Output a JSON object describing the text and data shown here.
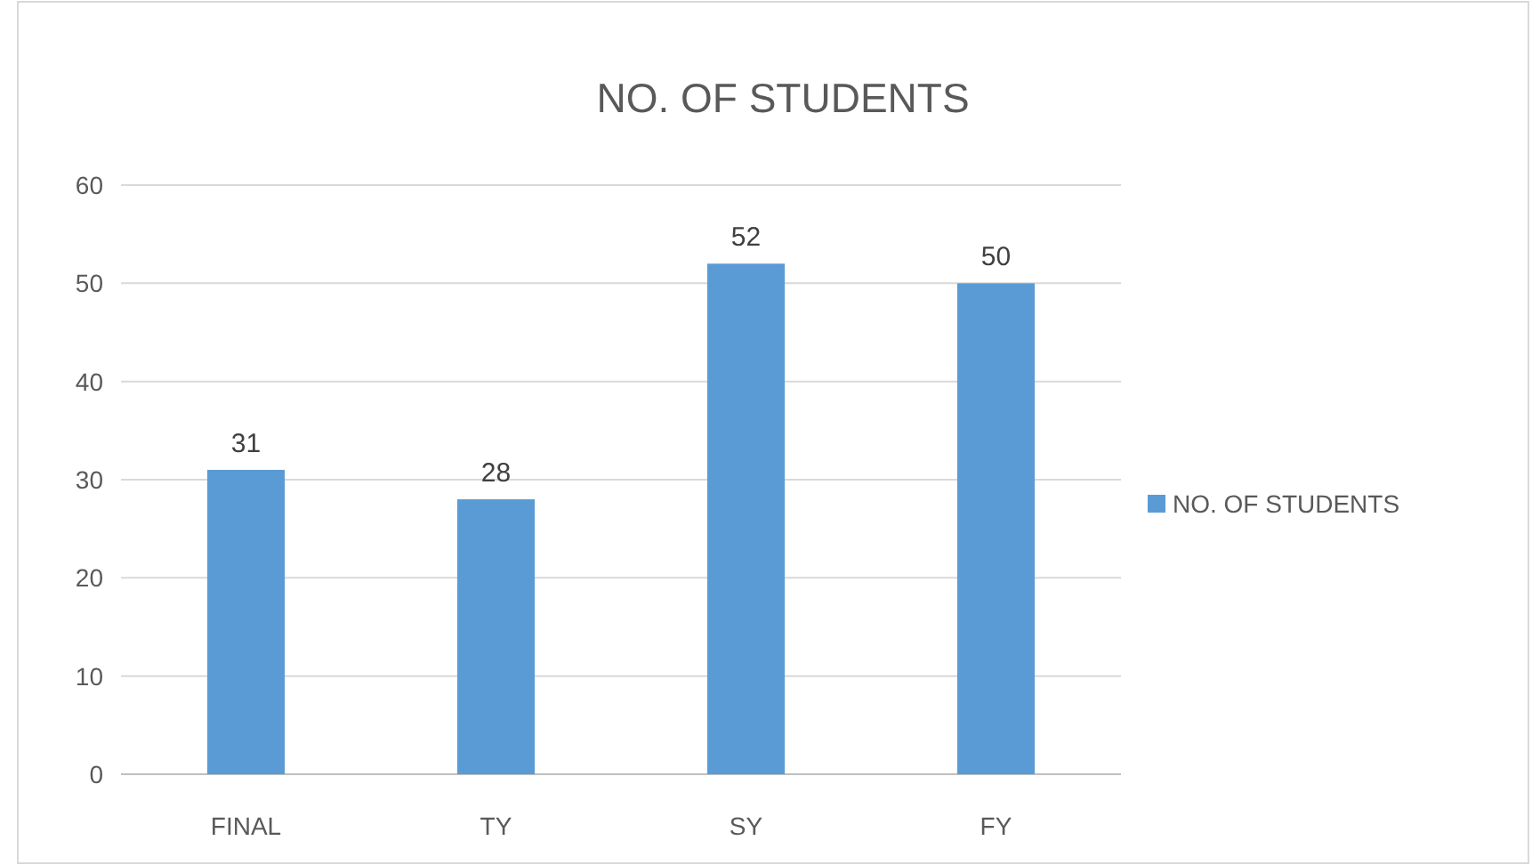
{
  "chart_data": {
    "type": "bar",
    "title": "NO. OF STUDENTS",
    "categories": [
      "FINAL",
      "TY",
      "SY",
      "FY"
    ],
    "series": [
      {
        "name": "NO. OF STUDENTS",
        "color": "#5b9bd5",
        "values": [
          31,
          28,
          52,
          50
        ]
      }
    ],
    "ylim": [
      0,
      60
    ],
    "yticks": [
      0,
      10,
      20,
      30,
      40,
      50,
      60
    ],
    "grid": "y",
    "legend": "right",
    "data_labels": true
  }
}
